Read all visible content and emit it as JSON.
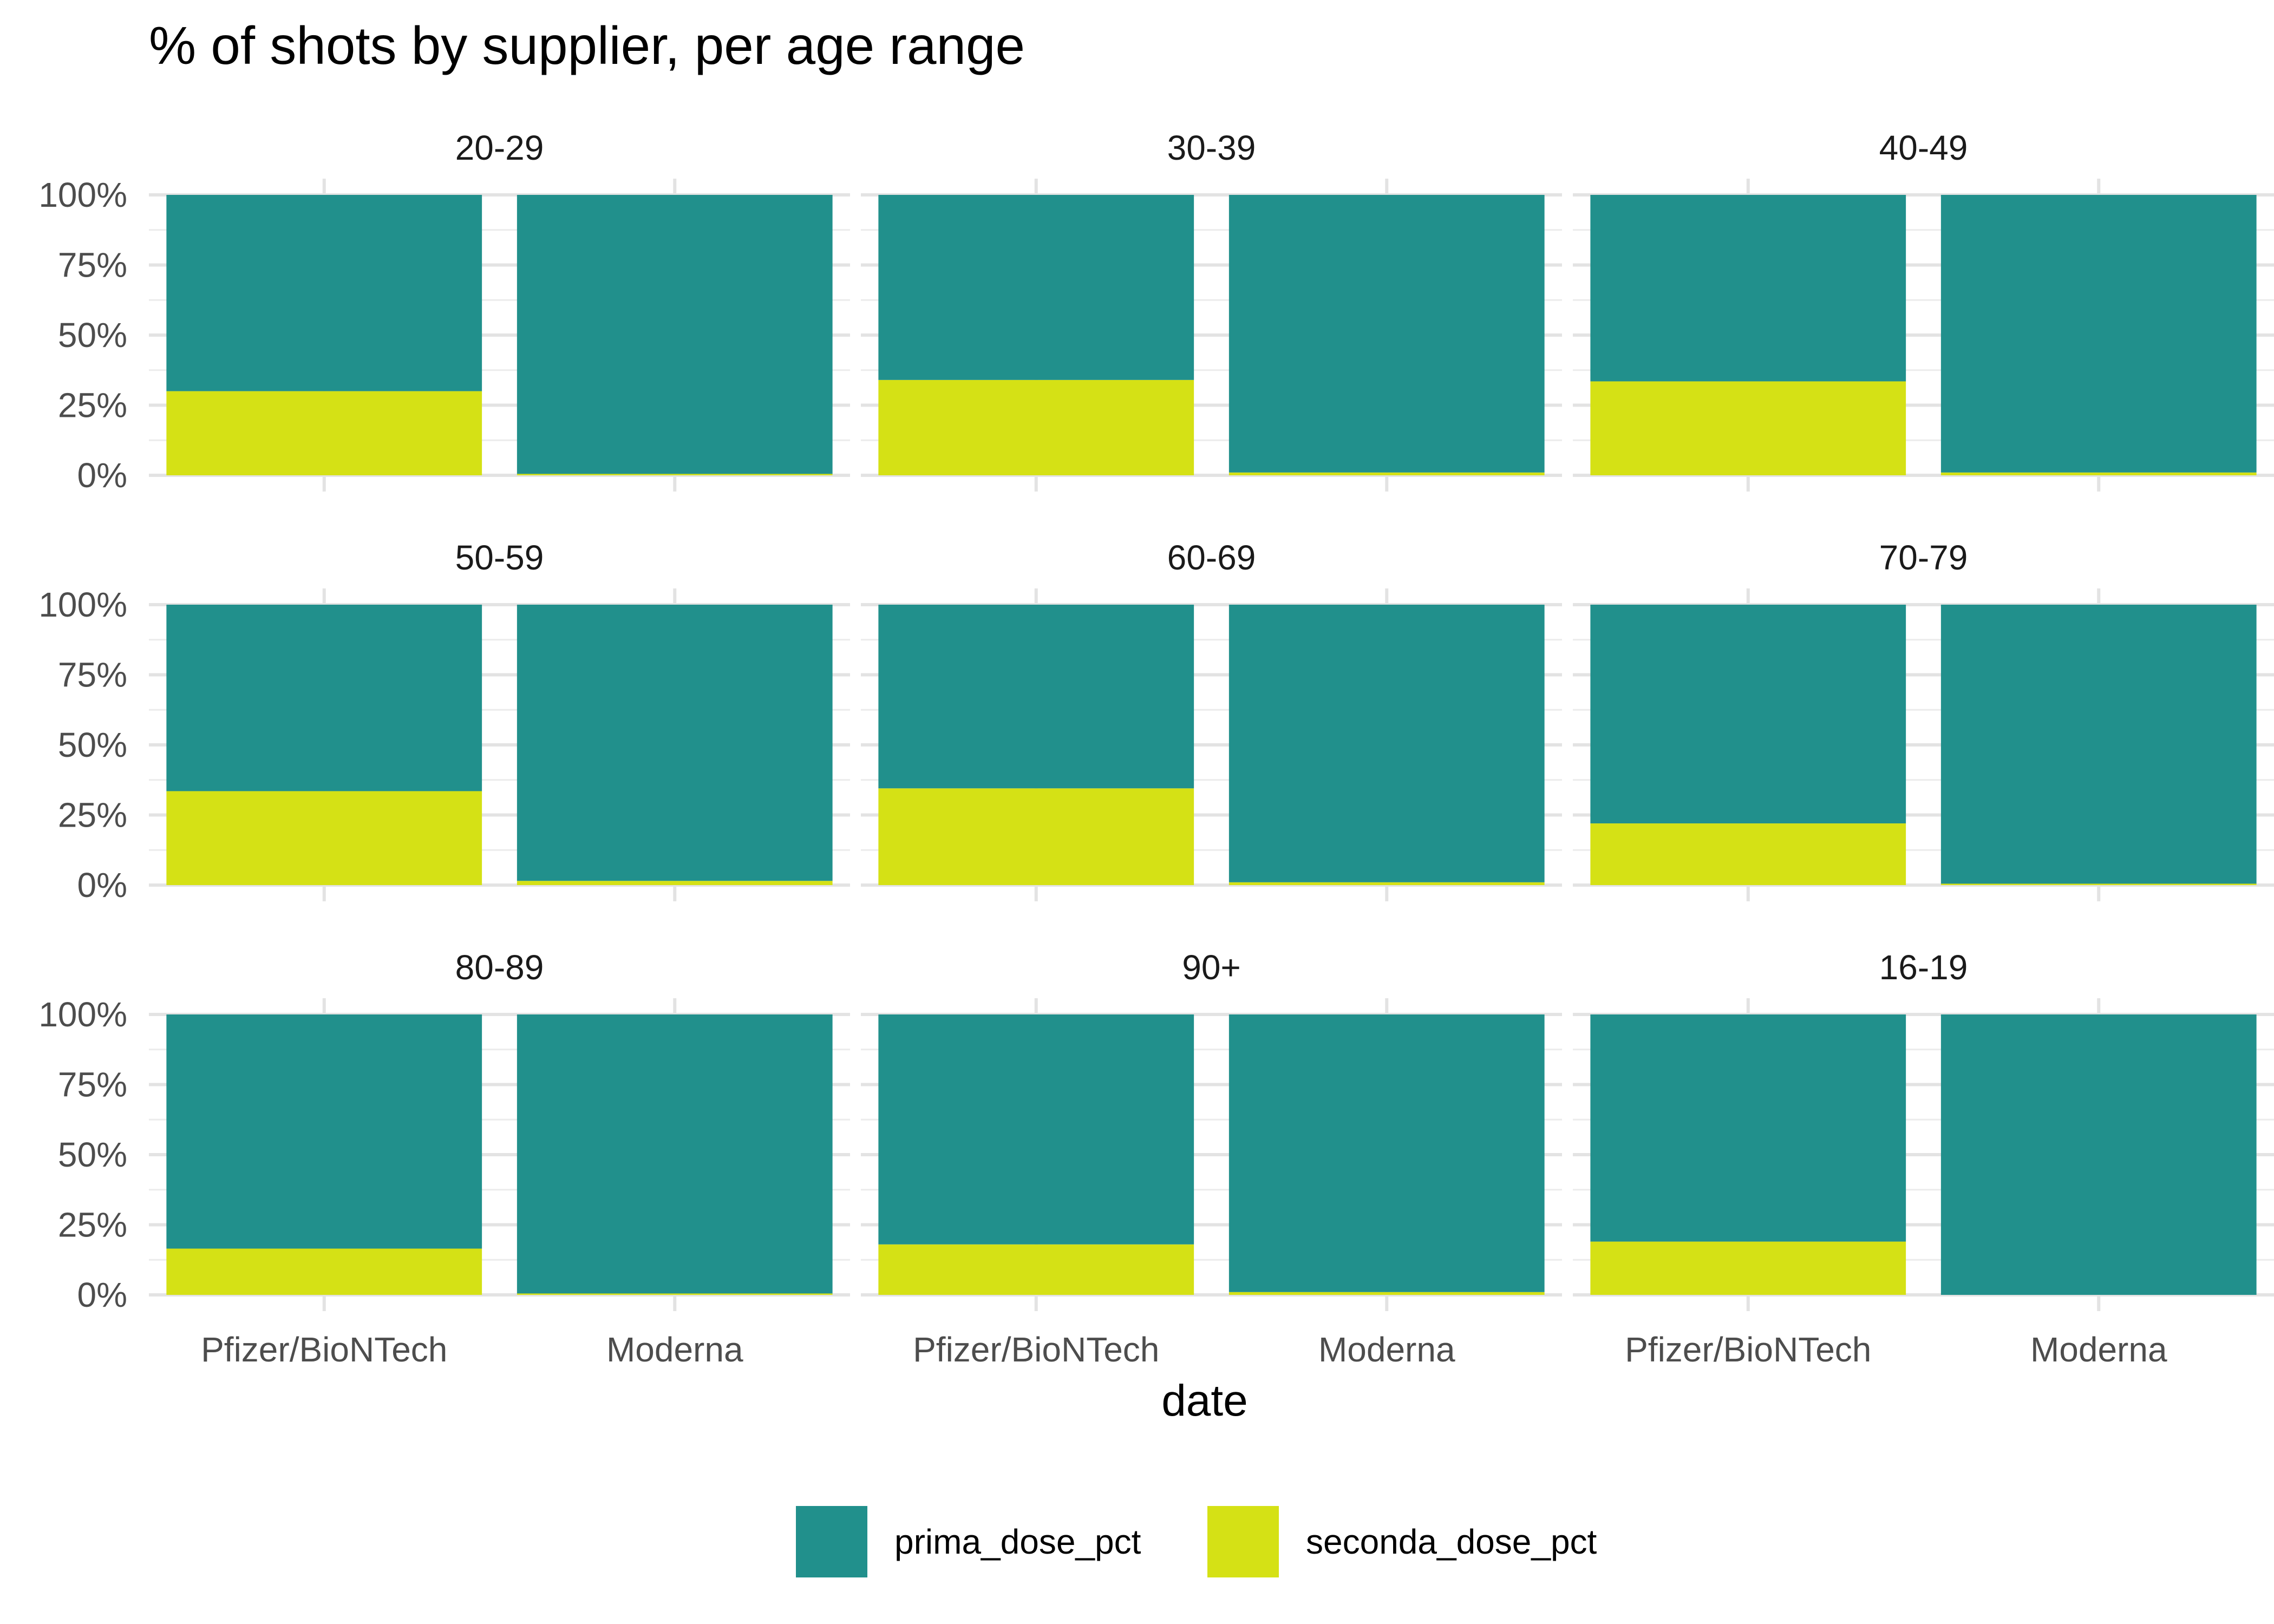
{
  "chart_data": {
    "type": "bar",
    "stacked": true,
    "title": "% of shots by supplier, per age range",
    "xlabel": "date",
    "ylabel": "",
    "ylim": [
      0,
      1
    ],
    "y_ticks": [
      "0%",
      "25%",
      "50%",
      "75%",
      "100%"
    ],
    "categories": [
      "Pfizer/BioNTech",
      "Moderna"
    ],
    "legend": {
      "placement": "bottom",
      "entries": [
        {
          "name": "prima_dose_pct",
          "color": "#21908C"
        },
        {
          "name": "seconda_dose_pct",
          "color": "#D5E115"
        }
      ]
    },
    "facets": [
      {
        "label": "20-29",
        "series": [
          {
            "name": "prima_dose_pct",
            "values": [
              0.7,
              0.995
            ]
          },
          {
            "name": "seconda_dose_pct",
            "values": [
              0.3,
              0.005
            ]
          }
        ]
      },
      {
        "label": "30-39",
        "series": [
          {
            "name": "prima_dose_pct",
            "values": [
              0.66,
              0.99
            ]
          },
          {
            "name": "seconda_dose_pct",
            "values": [
              0.34,
              0.01
            ]
          }
        ]
      },
      {
        "label": "40-49",
        "series": [
          {
            "name": "prima_dose_pct",
            "values": [
              0.665,
              0.99
            ]
          },
          {
            "name": "seconda_dose_pct",
            "values": [
              0.335,
              0.01
            ]
          }
        ]
      },
      {
        "label": "50-59",
        "series": [
          {
            "name": "prima_dose_pct",
            "values": [
              0.665,
              0.985
            ]
          },
          {
            "name": "seconda_dose_pct",
            "values": [
              0.335,
              0.015
            ]
          }
        ]
      },
      {
        "label": "60-69",
        "series": [
          {
            "name": "prima_dose_pct",
            "values": [
              0.655,
              0.99
            ]
          },
          {
            "name": "seconda_dose_pct",
            "values": [
              0.345,
              0.01
            ]
          }
        ]
      },
      {
        "label": "70-79",
        "series": [
          {
            "name": "prima_dose_pct",
            "values": [
              0.78,
              0.995
            ]
          },
          {
            "name": "seconda_dose_pct",
            "values": [
              0.22,
              0.005
            ]
          }
        ]
      },
      {
        "label": "80-89",
        "series": [
          {
            "name": "prima_dose_pct",
            "values": [
              0.835,
              0.995
            ]
          },
          {
            "name": "seconda_dose_pct",
            "values": [
              0.165,
              0.005
            ]
          }
        ]
      },
      {
        "label": "90+",
        "series": [
          {
            "name": "prima_dose_pct",
            "values": [
              0.82,
              0.99
            ]
          },
          {
            "name": "seconda_dose_pct",
            "values": [
              0.18,
              0.01
            ]
          }
        ]
      },
      {
        "label": "16-19",
        "series": [
          {
            "name": "prima_dose_pct",
            "values": [
              0.81,
              1.0
            ]
          },
          {
            "name": "seconda_dose_pct",
            "values": [
              0.19,
              0.0
            ]
          }
        ]
      }
    ]
  }
}
